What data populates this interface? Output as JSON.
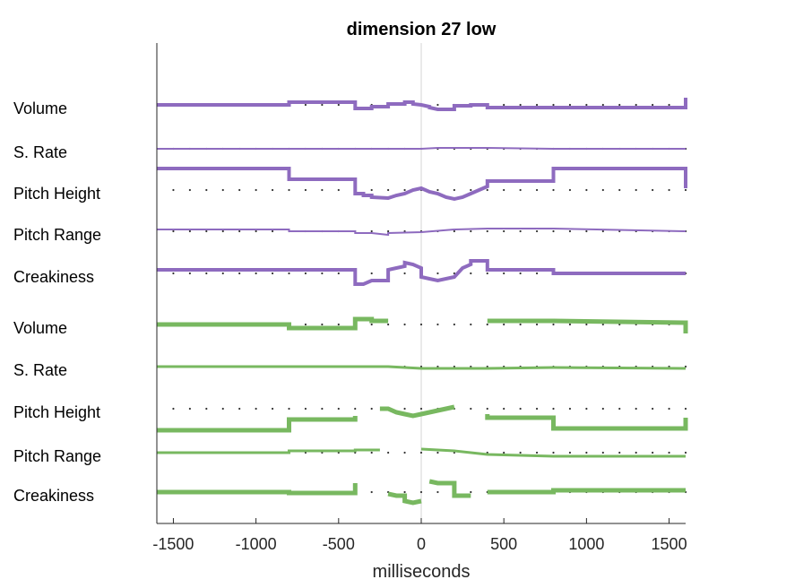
{
  "chart_data": {
    "type": "line",
    "title": "dimension 27 low",
    "xlabel": "milliseconds",
    "xlim": [
      -1600,
      1600
    ],
    "xticks": [
      -1500,
      -1000,
      -500,
      0,
      500,
      1000,
      1500
    ],
    "xtick_labels": [
      "-1500",
      "-1000",
      "-500",
      "0",
      "500",
      "1000",
      "1500"
    ],
    "zero_line": 0,
    "groups": [
      {
        "color": "#8e6bbf",
        "rows": [
          {
            "label": "Volume",
            "stroke": 4,
            "points": [
              [
                -1600,
                0
              ],
              [
                -800,
                0
              ],
              [
                -800,
                3
              ],
              [
                -400,
                3
              ],
              [
                -400,
                -4
              ],
              [
                -300,
                -4
              ],
              [
                -300,
                -2
              ],
              [
                -200,
                -2
              ],
              [
                -200,
                1
              ],
              [
                -100,
                1
              ],
              [
                -100,
                3
              ],
              [
                -50,
                3
              ],
              [
                -50,
                1
              ],
              [
                0,
                0
              ],
              [
                50,
                -2
              ],
              [
                50,
                -3
              ],
              [
                100,
                -5
              ],
              [
                200,
                -5
              ],
              [
                200,
                -1
              ],
              [
                300,
                -1
              ],
              [
                300,
                0
              ],
              [
                400,
                0
              ],
              [
                400,
                -3
              ],
              [
                1600,
                -3
              ],
              [
                1600,
                8
              ]
            ]
          },
          {
            "label": "S. Rate",
            "stroke": 2,
            "points": [
              [
                -1600,
                0
              ],
              [
                -800,
                0
              ],
              [
                -400,
                0
              ],
              [
                -200,
                0
              ],
              [
                0,
                0
              ],
              [
                100,
                1
              ],
              [
                400,
                1
              ],
              [
                800,
                0
              ],
              [
                1600,
                0
              ]
            ]
          },
          {
            "label": "Pitch Height",
            "stroke": 4,
            "points": [
              [
                -1600,
                24
              ],
              [
                -800,
                24
              ],
              [
                -800,
                12
              ],
              [
                -400,
                12
              ],
              [
                -400,
                -4
              ],
              [
                -350,
                -4
              ],
              [
                -350,
                -6
              ],
              [
                -300,
                -6
              ],
              [
                -300,
                -8
              ],
              [
                -200,
                -9
              ],
              [
                -150,
                -6
              ],
              [
                -100,
                -4
              ],
              [
                -50,
                0
              ],
              [
                0,
                2
              ],
              [
                50,
                -2
              ],
              [
                100,
                -4
              ],
              [
                150,
                -8
              ],
              [
                200,
                -10
              ],
              [
                250,
                -8
              ],
              [
                300,
                -4
              ],
              [
                350,
                0
              ],
              [
                400,
                4
              ],
              [
                400,
                10
              ],
              [
                800,
                10
              ],
              [
                800,
                24
              ],
              [
                1600,
                24
              ],
              [
                1600,
                2
              ]
            ]
          },
          {
            "label": "Pitch Range",
            "stroke": 2,
            "points": [
              [
                -1600,
                2
              ],
              [
                -800,
                2
              ],
              [
                -800,
                0
              ],
              [
                -400,
                0
              ],
              [
                -400,
                -2
              ],
              [
                -300,
                -2
              ],
              [
                -200,
                -4
              ],
              [
                -200,
                -2
              ],
              [
                0,
                -1
              ],
              [
                200,
                2
              ],
              [
                400,
                3
              ],
              [
                800,
                3
              ],
              [
                1600,
                0
              ]
            ]
          },
          {
            "label": "Creakiness",
            "stroke": 4,
            "points": [
              [
                -1600,
                4
              ],
              [
                -800,
                4
              ],
              [
                -400,
                4
              ],
              [
                -400,
                -12
              ],
              [
                -350,
                -12
              ],
              [
                -300,
                -8
              ],
              [
                -200,
                -8
              ],
              [
                -200,
                4
              ],
              [
                -100,
                8
              ],
              [
                -100,
                12
              ],
              [
                -50,
                10
              ],
              [
                0,
                6
              ],
              [
                0,
                -4
              ],
              [
                50,
                -6
              ],
              [
                100,
                -8
              ],
              [
                200,
                -4
              ],
              [
                250,
                6
              ],
              [
                300,
                10
              ],
              [
                300,
                14
              ],
              [
                400,
                14
              ],
              [
                400,
                4
              ],
              [
                800,
                4
              ],
              [
                800,
                0
              ],
              [
                1600,
                0
              ]
            ]
          }
        ]
      },
      {
        "color": "#78b860",
        "rows": [
          {
            "label": "Volume",
            "stroke": 5,
            "segments": [
              [
                [
                  -1600,
                  0
                ],
                [
                  -800,
                  0
                ],
                [
                  -800,
                  -4
                ],
                [
                  -400,
                  -4
                ],
                [
                  -400,
                  6
                ],
                [
                  -300,
                  6
                ],
                [
                  -300,
                  4
                ],
                [
                  -200,
                  4
                ]
              ],
              [
                [
                  400,
                  4
                ],
                [
                  800,
                  4
                ],
                [
                  1600,
                  2
                ],
                [
                  1600,
                  -10
                ]
              ]
            ]
          },
          {
            "label": "S. Rate",
            "stroke": 3,
            "segments": [
              [
                [
                  -1600,
                  0
                ],
                [
                  -800,
                  0
                ],
                [
                  -400,
                  0
                ],
                [
                  -200,
                  0
                ],
                [
                  0,
                  -2
                ],
                [
                  400,
                  -2
                ],
                [
                  800,
                  -1
                ],
                [
                  1600,
                  -2
                ]
              ]
            ]
          },
          {
            "label": "Pitch Height",
            "stroke": 5,
            "segments": [
              [
                [
                  -1600,
                  -24
                ],
                [
                  -800,
                  -24
                ],
                [
                  -800,
                  -12
                ],
                [
                  -400,
                  -12
                ],
                [
                  -400,
                  -8
                ]
              ],
              [
                [
                  -250,
                  0
                ],
                [
                  -200,
                  0
                ],
                [
                  -150,
                  -4
                ],
                [
                  -100,
                  -6
                ],
                [
                  -50,
                  -8
                ],
                [
                  0,
                  -6
                ],
                [
                  50,
                  -4
                ],
                [
                  100,
                  -2
                ],
                [
                  150,
                  0
                ],
                [
                  200,
                  2
                ]
              ],
              [
                [
                  400,
                  -6
                ],
                [
                  400,
                  -10
                ],
                [
                  800,
                  -10
                ],
                [
                  800,
                  -22
                ],
                [
                  1600,
                  -22
                ],
                [
                  1600,
                  -10
                ]
              ]
            ]
          },
          {
            "label": "Pitch Range",
            "stroke": 3,
            "segments": [
              [
                [
                  -1600,
                  0
                ],
                [
                  -800,
                  0
                ],
                [
                  -800,
                  2
                ],
                [
                  -400,
                  2
                ],
                [
                  -400,
                  3
                ],
                [
                  -250,
                  3
                ]
              ],
              [
                [
                  0,
                  4
                ],
                [
                  200,
                  2
                ],
                [
                  400,
                  -2
                ],
                [
                  800,
                  -4
                ],
                [
                  1600,
                  -4
                ]
              ]
            ]
          },
          {
            "label": "Creakiness",
            "stroke": 5,
            "segments": [
              [
                [
                  -1600,
                  0
                ],
                [
                  -800,
                  0
                ],
                [
                  -800,
                  -1
                ],
                [
                  -400,
                  -1
                ],
                [
                  -400,
                  10
                ]
              ],
              [
                [
                  -200,
                  -2
                ],
                [
                  -150,
                  -4
                ],
                [
                  -100,
                  -4
                ],
                [
                  -100,
                  -10
                ],
                [
                  -50,
                  -12
                ],
                [
                  0,
                  -10
                ]
              ],
              [
                [
                  50,
                  12
                ],
                [
                  100,
                  10
                ],
                [
                  200,
                  10
                ],
                [
                  200,
                  -4
                ],
                [
                  300,
                  -4
                ]
              ],
              [
                [
                  400,
                  0
                ],
                [
                  800,
                  0
                ],
                [
                  800,
                  2
                ],
                [
                  1600,
                  2
                ]
              ]
            ]
          }
        ]
      }
    ]
  }
}
